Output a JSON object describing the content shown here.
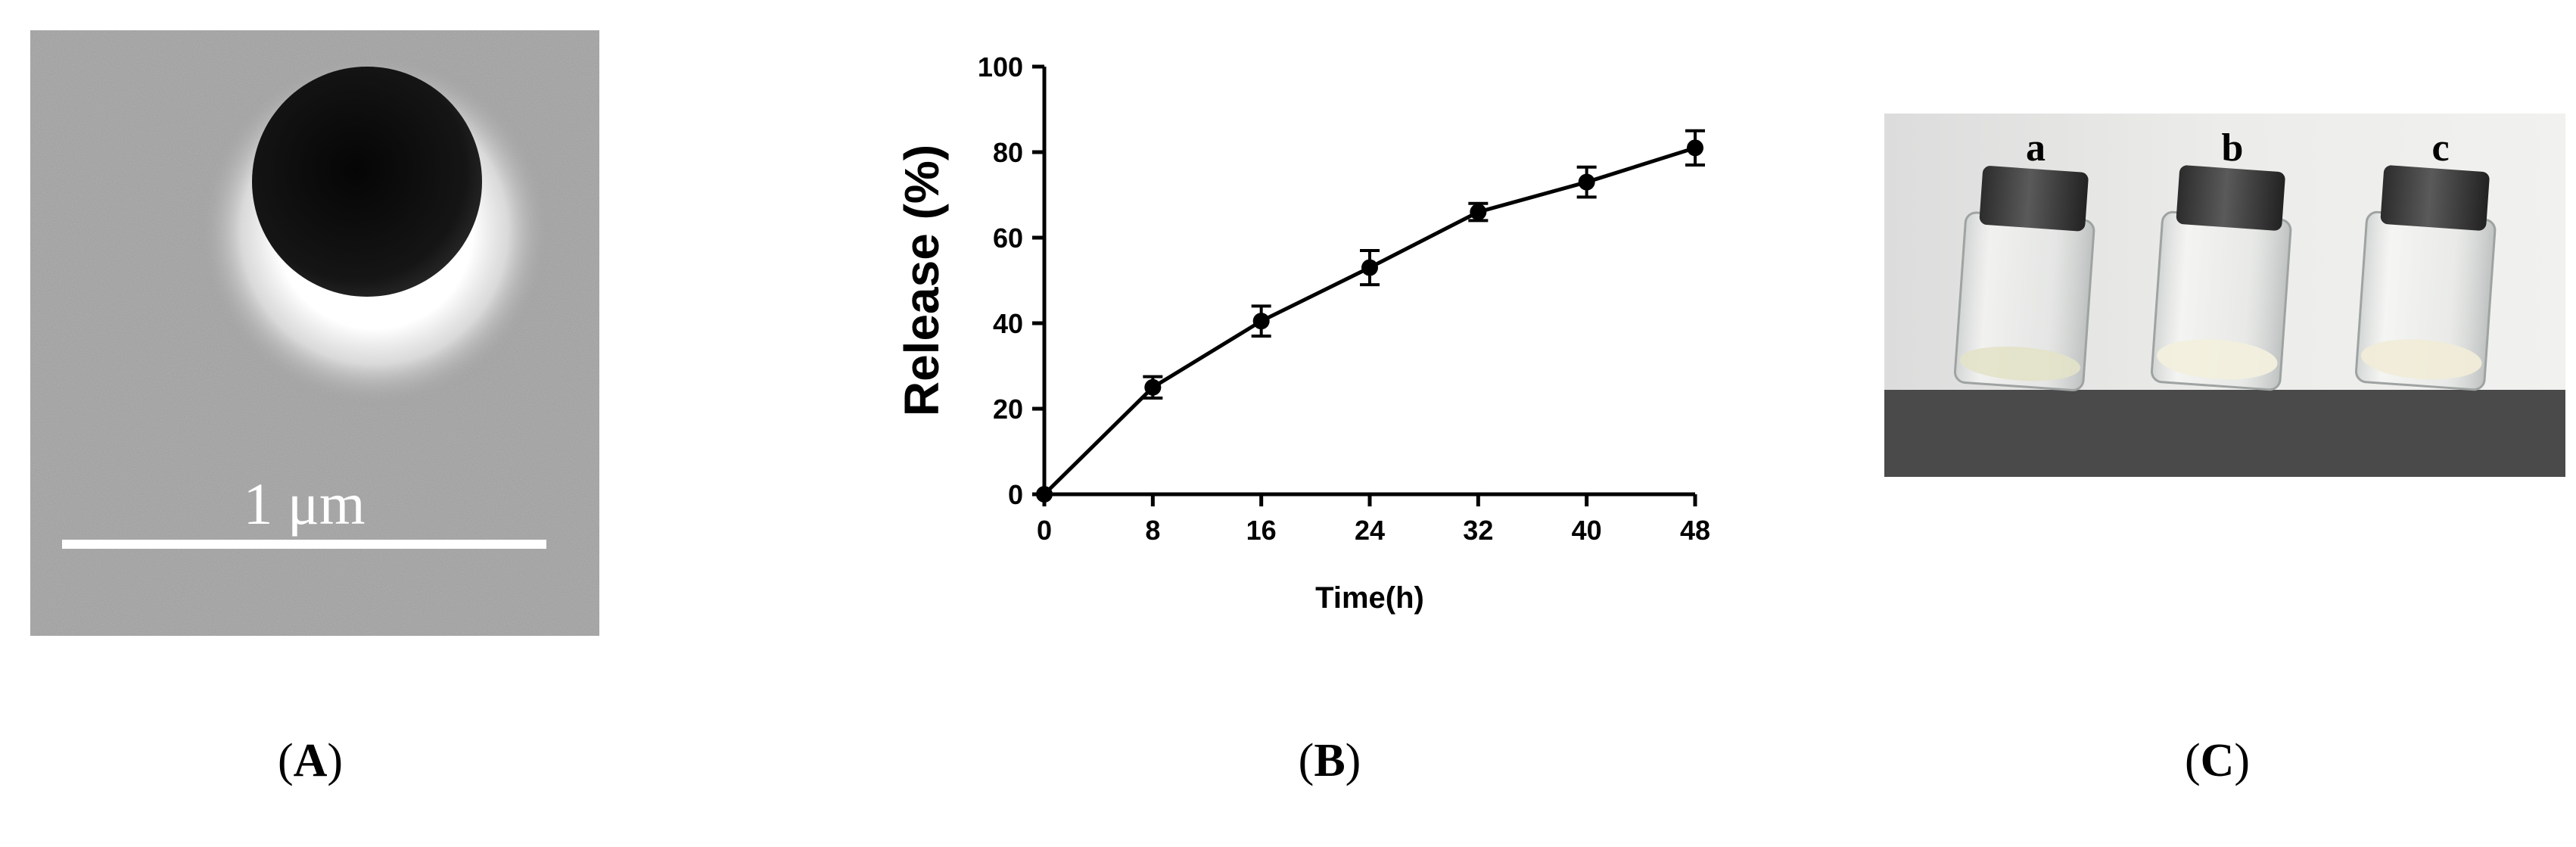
{
  "panel_a": {
    "scale_bar_label": "1  μm",
    "caption_letter": "A"
  },
  "panel_b": {
    "caption_letter": "B"
  },
  "panel_c": {
    "vial_labels": [
      "a",
      "b",
      "c"
    ],
    "caption_letter": "C"
  },
  "colors": {
    "sem_background": "#9a9a9a",
    "particle": "#151515",
    "line": "#000000",
    "bench": "#4a4a4a",
    "wall": "#e9e9e7"
  },
  "chart_data": {
    "type": "line",
    "title": "",
    "xlabel": "Time(h)",
    "ylabel": "Release (%)",
    "xlim": [
      0,
      48
    ],
    "ylim": [
      0,
      100
    ],
    "xticks": [
      0,
      8,
      16,
      24,
      32,
      40,
      48
    ],
    "yticks": [
      0,
      20,
      40,
      60,
      80,
      100
    ],
    "grid": false,
    "legend": "none",
    "series": [
      {
        "x": [
          0,
          8,
          16,
          24,
          32,
          40,
          48
        ],
        "y": [
          0,
          25,
          40.5,
          53,
          66,
          73,
          81
        ],
        "error": [
          0,
          2.5,
          3.5,
          4,
          2,
          3.5,
          4
        ]
      }
    ]
  }
}
